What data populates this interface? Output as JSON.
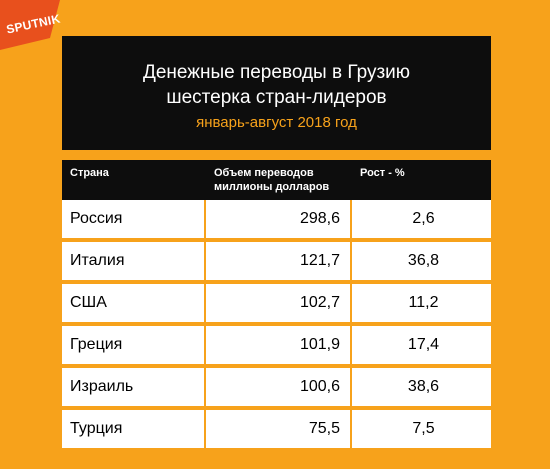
{
  "brand": {
    "logo_text": "SPUTNIK"
  },
  "colors": {
    "background": "#f7a21b",
    "header_bg": "#0d0d0d",
    "accent": "#f7a21b"
  },
  "chart_data": {
    "type": "table",
    "title": "Денежные переводы в Грузию",
    "subtitle_line": "шестерка стран-лидеров",
    "period": "январь-август 2018 год",
    "columns": [
      "Страна",
      "Объем переводов миллионы долларов",
      "Рост - %"
    ],
    "column_lines": {
      "country": "Страна",
      "volume_line1": "Объем переводов",
      "volume_line2": "миллионы долларов",
      "growth": "Рост - %"
    },
    "rows": [
      {
        "country": "Россия",
        "volume": "298,6",
        "growth": "2,6"
      },
      {
        "country": "Италия",
        "volume": "121,7",
        "growth": "36,8"
      },
      {
        "country": "США",
        "volume": "102,7",
        "growth": "11,2"
      },
      {
        "country": "Греция",
        "volume": "101,9",
        "growth": "17,4"
      },
      {
        "country": "Израиль",
        "volume": "100,6",
        "growth": "38,6"
      },
      {
        "country": "Турция",
        "volume": "75,5",
        "growth": "7,5"
      }
    ]
  }
}
